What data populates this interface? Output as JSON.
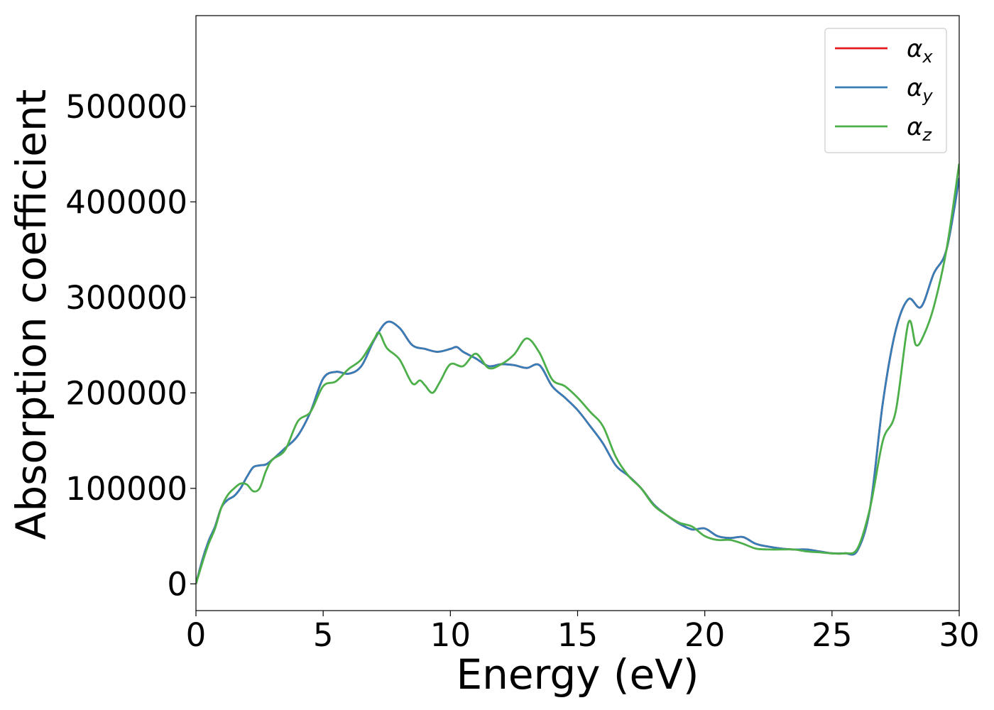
{
  "chart_data": {
    "type": "line",
    "xlabel": "Energy (eV)",
    "ylabel": "Absorption coefficient",
    "xlim": [
      0,
      30
    ],
    "ylim": [
      -28000,
      595000
    ],
    "xticks": [
      0,
      5,
      10,
      15,
      20,
      25,
      30
    ],
    "yticks": [
      0,
      100000,
      200000,
      300000,
      400000,
      500000
    ],
    "grid": false,
    "legend_position": "top-right",
    "series": [
      {
        "name": "α",
        "subscript": "x",
        "color": "#e41a1c",
        "x": [
          0,
          0.25,
          0.5,
          0.75,
          1,
          1.25,
          1.5,
          1.75,
          2,
          2.25,
          2.5,
          2.75,
          3,
          3.5,
          4,
          4.5,
          5,
          5.5,
          6,
          6.5,
          7,
          7.5,
          8,
          8.5,
          9,
          9.5,
          10,
          10.25,
          10.5,
          11,
          11.5,
          12,
          12.5,
          13,
          13.5,
          14,
          14.5,
          15,
          15.5,
          16,
          16.5,
          17,
          17.5,
          18,
          18.5,
          19,
          19.5,
          20,
          20.5,
          21,
          21.5,
          22,
          22.5,
          23,
          23.5,
          24,
          24.5,
          25,
          25.5,
          26,
          26.5,
          27,
          27.5,
          28,
          28.5,
          29,
          29.5,
          30
        ],
        "y": [
          0,
          25000,
          45000,
          60000,
          80000,
          88000,
          92000,
          100000,
          112000,
          122000,
          124000,
          125000,
          130000,
          142000,
          155000,
          180000,
          215000,
          222000,
          220000,
          228000,
          255000,
          274000,
          268000,
          250000,
          246000,
          243000,
          246000,
          248000,
          243000,
          236000,
          228000,
          230000,
          229000,
          226000,
          229000,
          207000,
          195000,
          182000,
          165000,
          147000,
          124000,
          113000,
          100000,
          83000,
          72000,
          63000,
          57000,
          58000,
          50000,
          48000,
          49000,
          42000,
          39000,
          37000,
          36000,
          36000,
          34000,
          32000,
          32000,
          35000,
          80000,
          190000,
          265000,
          298000,
          290000,
          325000,
          350000,
          425000
        ]
      },
      {
        "name": "α",
        "subscript": "y",
        "color": "#377eb8",
        "x": [
          0,
          0.25,
          0.5,
          0.75,
          1,
          1.25,
          1.5,
          1.75,
          2,
          2.25,
          2.5,
          2.75,
          3,
          3.5,
          4,
          4.5,
          5,
          5.5,
          6,
          6.5,
          7,
          7.5,
          8,
          8.5,
          9,
          9.5,
          10,
          10.25,
          10.5,
          11,
          11.5,
          12,
          12.5,
          13,
          13.5,
          14,
          14.5,
          15,
          15.5,
          16,
          16.5,
          17,
          17.5,
          18,
          18.5,
          19,
          19.5,
          20,
          20.5,
          21,
          21.5,
          22,
          22.5,
          23,
          23.5,
          24,
          24.5,
          25,
          25.5,
          26,
          26.5,
          27,
          27.5,
          28,
          28.5,
          29,
          29.5,
          30
        ],
        "y": [
          0,
          25000,
          45000,
          60000,
          80000,
          88000,
          92000,
          100000,
          112000,
          122000,
          124000,
          125000,
          130000,
          142000,
          155000,
          180000,
          215000,
          222000,
          220000,
          228000,
          255000,
          274000,
          268000,
          250000,
          246000,
          243000,
          246000,
          248000,
          243000,
          236000,
          228000,
          230000,
          229000,
          226000,
          229000,
          207000,
          195000,
          182000,
          165000,
          147000,
          124000,
          113000,
          100000,
          83000,
          72000,
          63000,
          57000,
          58000,
          50000,
          48000,
          49000,
          42000,
          39000,
          37000,
          36000,
          36000,
          34000,
          32000,
          32000,
          35000,
          80000,
          190000,
          265000,
          298000,
          290000,
          325000,
          350000,
          425000
        ]
      },
      {
        "name": "α",
        "subscript": "z",
        "color": "#4daf4a",
        "x": [
          0,
          0.25,
          0.5,
          0.75,
          1,
          1.25,
          1.5,
          1.75,
          2,
          2.25,
          2.5,
          2.75,
          3,
          3.5,
          4,
          4.5,
          5,
          5.5,
          6,
          6.5,
          7,
          7.2,
          7.5,
          8,
          8.5,
          8.8,
          9,
          9.3,
          9.6,
          10,
          10.5,
          11,
          11.5,
          12,
          12.5,
          13,
          13.5,
          14,
          14.5,
          15,
          15.5,
          16,
          16.5,
          17,
          17.5,
          18,
          18.5,
          19,
          19.5,
          20,
          20.5,
          21,
          21.5,
          22,
          22.5,
          23,
          23.5,
          24,
          24.5,
          25,
          25.5,
          26,
          26.5,
          27,
          27.5,
          28,
          28.3,
          28.6,
          29,
          29.5,
          30
        ],
        "y": [
          0,
          22000,
          42000,
          58000,
          80000,
          93000,
          100000,
          105000,
          104000,
          97000,
          100000,
          118000,
          130000,
          140000,
          170000,
          180000,
          207000,
          212000,
          225000,
          235000,
          256000,
          263000,
          247000,
          235000,
          210000,
          213000,
          208000,
          200000,
          212000,
          230000,
          228000,
          241000,
          226000,
          230000,
          240000,
          257000,
          242000,
          214000,
          207000,
          195000,
          180000,
          165000,
          133000,
          113000,
          100000,
          82000,
          72000,
          64000,
          60000,
          50000,
          46000,
          46000,
          42000,
          37000,
          36000,
          36000,
          36000,
          34000,
          33000,
          32000,
          32000,
          37000,
          80000,
          150000,
          180000,
          273000,
          250000,
          260000,
          290000,
          350000,
          440000
        ]
      }
    ]
  }
}
